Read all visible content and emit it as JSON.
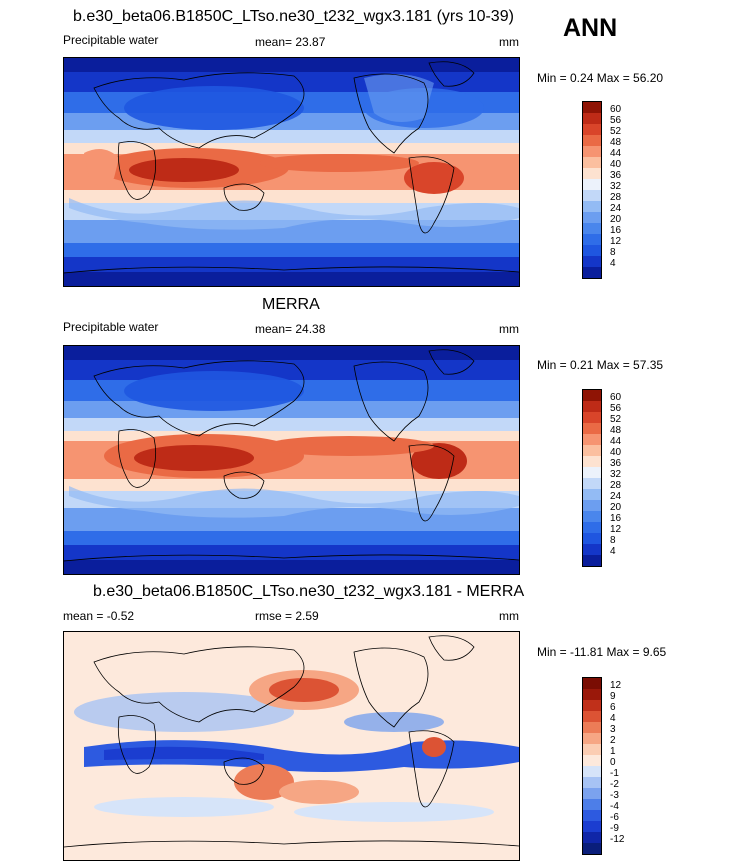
{
  "season": "ANN",
  "panels": [
    {
      "title": "b.e30_beta06.B1850C_LTso.ne30_t232_wgx3.181 (yrs 10-39)",
      "left_label": "Precipitable water",
      "center_label": "mean=  23.87",
      "right_label": "mm",
      "minmax": "Min =  0.24 Max =  56.20",
      "colorbar": {
        "ticks": [
          "4",
          "8",
          "12",
          "16",
          "20",
          "24",
          "28",
          "32",
          "36",
          "40",
          "44",
          "48",
          "52",
          "56",
          "60"
        ],
        "colors": [
          "#0a1e9c",
          "#1436c8",
          "#1f56e0",
          "#2f6de8",
          "#4a86ec",
          "#6c9ef0",
          "#93bbf4",
          "#c2d8f8",
          "#ecf2fb",
          "#fde2d0",
          "#fbbf9f",
          "#f69471",
          "#ea6a45",
          "#d9452a",
          "#be2b17",
          "#8f1405"
        ]
      }
    },
    {
      "title": "MERRA",
      "left_label": "Precipitable water",
      "center_label": "mean=  24.38",
      "right_label": "mm",
      "minmax": "Min =  0.21 Max =  57.35",
      "colorbar": {
        "ticks": [
          "4",
          "8",
          "12",
          "16",
          "20",
          "24",
          "28",
          "32",
          "36",
          "40",
          "44",
          "48",
          "52",
          "56",
          "60"
        ],
        "colors": [
          "#0a1e9c",
          "#1436c8",
          "#1f56e0",
          "#2f6de8",
          "#4a86ec",
          "#6c9ef0",
          "#93bbf4",
          "#c2d8f8",
          "#ecf2fb",
          "#fde2d0",
          "#fbbf9f",
          "#f69471",
          "#ea6a45",
          "#d9452a",
          "#be2b17",
          "#8f1405"
        ]
      }
    },
    {
      "title": "b.e30_beta06.B1850C_LTso.ne30_t232_wgx3.181 - MERRA",
      "left_label": "mean =  -0.52",
      "center_label": "rmse =   2.59",
      "right_label": "mm",
      "minmax": "Min = -11.81 Max =   9.65",
      "colorbar": {
        "ticks": [
          "-12",
          "-9",
          "-6",
          "-4",
          "-3",
          "-2",
          "-1",
          "0",
          "1",
          "2",
          "3",
          "4",
          "6",
          "9",
          "12"
        ],
        "colors": [
          "#0a1e7a",
          "#1026a8",
          "#1b3dd0",
          "#2d5ae0",
          "#4d7ee8",
          "#7ba2ee",
          "#a7c3f4",
          "#d6e4f9",
          "#fde9dc",
          "#fbcdb3",
          "#f6a684",
          "#ec7c57",
          "#dc5334",
          "#c0301a",
          "#9a180a",
          "#7a0d03"
        ]
      }
    }
  ],
  "chart_data": [
    {
      "type": "heatmap",
      "title": "b.e30_beta06.B1850C_LTso.ne30_t232_wgx3.181 (yrs 10-39)",
      "variable": "Precipitable water",
      "units": "mm",
      "mean": 23.87,
      "min": 0.24,
      "max": 56.2,
      "contour_levels": [
        4,
        8,
        12,
        16,
        20,
        24,
        28,
        32,
        36,
        40,
        44,
        48,
        52,
        56,
        60
      ]
    },
    {
      "type": "heatmap",
      "title": "MERRA",
      "variable": "Precipitable water",
      "units": "mm",
      "mean": 24.38,
      "min": 0.21,
      "max": 57.35,
      "contour_levels": [
        4,
        8,
        12,
        16,
        20,
        24,
        28,
        32,
        36,
        40,
        44,
        48,
        52,
        56,
        60
      ]
    },
    {
      "type": "heatmap",
      "title": "b.e30_beta06.B1850C_LTso.ne30_t232_wgx3.181 - MERRA",
      "units": "mm",
      "mean": -0.52,
      "rmse": 2.59,
      "min": -11.81,
      "max": 9.65,
      "contour_levels": [
        -12,
        -9,
        -6,
        -4,
        -3,
        -2,
        -1,
        0,
        1,
        2,
        3,
        4,
        6,
        9,
        12
      ]
    }
  ]
}
